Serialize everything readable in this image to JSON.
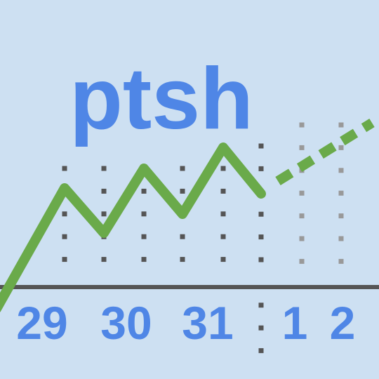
{
  "icon": {
    "title": "ptsh",
    "date_labels": [
      "29",
      "30",
      "31",
      "1",
      "2"
    ],
    "colors": {
      "background": "#cde0f2",
      "text": "#4f86e6",
      "line": "#6aaa4a",
      "axis": "#555555",
      "grid_dark": "#555555",
      "grid_light": "#999999"
    }
  }
}
